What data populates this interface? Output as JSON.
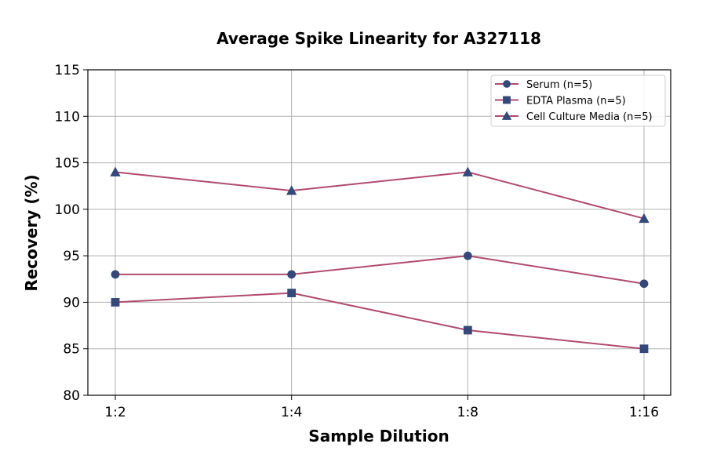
{
  "chart_data": {
    "type": "line",
    "title": "Average Spike Linearity for A327118",
    "xlabel": "Sample Dilution",
    "ylabel": "Recovery (%)",
    "categories": [
      "1:2",
      "1:4",
      "1:8",
      "1:16"
    ],
    "ylim": [
      80,
      115
    ],
    "yticks": [
      80,
      85,
      90,
      95,
      100,
      105,
      110,
      115
    ],
    "grid": true,
    "legend_position": "top-right",
    "line_color": "#b04a70",
    "marker_color": "#34497a",
    "series": [
      {
        "name": "Serum (n=5)",
        "marker": "circle",
        "values": [
          93,
          93,
          95,
          92
        ]
      },
      {
        "name": "EDTA Plasma (n=5)",
        "marker": "square",
        "values": [
          90,
          91,
          87,
          85
        ]
      },
      {
        "name": "Cell Culture Media (n=5)",
        "marker": "triangle",
        "values": [
          104,
          102,
          104,
          99
        ]
      }
    ]
  }
}
